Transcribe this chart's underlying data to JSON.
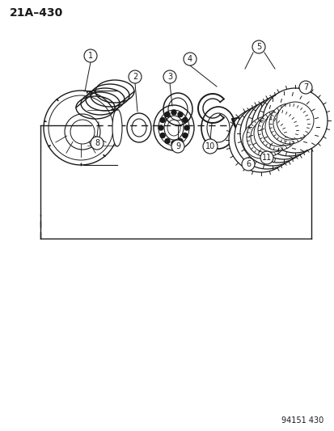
{
  "title": "21A–430",
  "footer": "94151 430",
  "background_color": "#ffffff",
  "line_color": "#1a1a1a",
  "figure_width": 4.14,
  "figure_height": 5.33,
  "dpi": 100
}
